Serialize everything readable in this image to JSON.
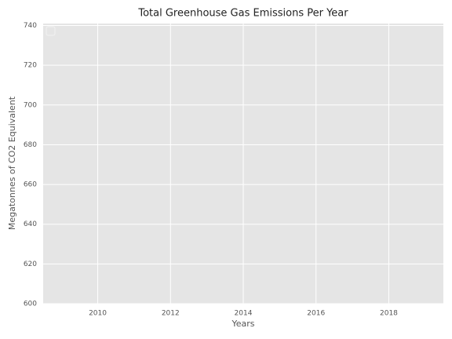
{
  "chart_data": {
    "type": "line",
    "title": "Total Greenhouse Gas Emissions Per Year",
    "xlabel": "Years",
    "ylabel": "Megatonnes of CO2 Equivalent",
    "xlim": [
      2008.5,
      2019.5
    ],
    "xticks": [
      2010,
      2012,
      2014,
      2016,
      2018
    ],
    "ylim": [
      600,
      741
    ],
    "yticks": [
      600,
      620,
      640,
      660,
      680,
      700,
      720,
      740
    ],
    "grid": true,
    "legend": "upper left",
    "series": []
  }
}
